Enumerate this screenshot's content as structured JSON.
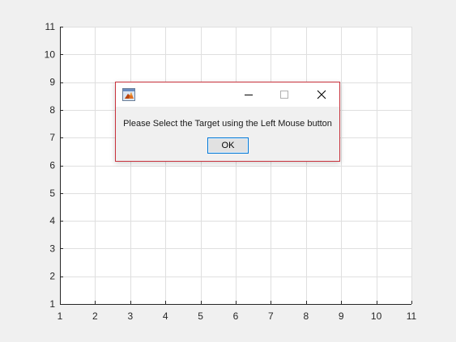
{
  "chart_data": {
    "type": "line",
    "title": "",
    "xlabel": "",
    "ylabel": "",
    "xlim": [
      1,
      11
    ],
    "ylim": [
      1,
      11
    ],
    "xticks": [
      1,
      2,
      3,
      4,
      5,
      6,
      7,
      8,
      9,
      10,
      11
    ],
    "yticks": [
      1,
      2,
      3,
      4,
      5,
      6,
      7,
      8,
      9,
      10,
      11
    ],
    "grid": true,
    "series": []
  },
  "dialog": {
    "message": "Please Select the Target using the Left Mouse button",
    "ok_label": "OK",
    "icon": "matlab-app-icon",
    "border_color": "#c8323c"
  },
  "colors": {
    "figure_bg": "#f0f0f0",
    "axes_bg": "#ffffff",
    "grid": "#dfdfdf",
    "axis": "#262626"
  }
}
